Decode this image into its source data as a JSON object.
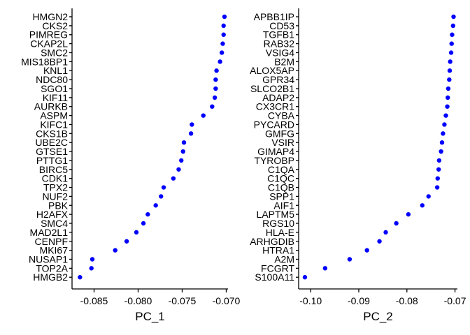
{
  "chart_data": [
    {
      "type": "scatter",
      "xlabel": "PC_1",
      "xlim": [
        -0.0875,
        -0.0698
      ],
      "xticks": [
        -0.085,
        -0.08,
        -0.075,
        -0.07
      ],
      "xtick_labels": [
        "-0.085",
        "-0.080",
        "-0.075",
        "-0.070"
      ],
      "point_color": "#0000ff",
      "grid": false,
      "genes": [
        "HMGN2",
        "CKS2",
        "PIMREG",
        "CKAP2L",
        "SMC2",
        "MIS18BP1",
        "KNL1",
        "NDC80",
        "SGO1",
        "KIF11",
        "AURKB",
        "ASPM",
        "KIFC1",
        "CKS1B",
        "UBE2C",
        "GTSE1",
        "PTTG1",
        "BIRC5",
        "CDK1",
        "TPX2",
        "NUF2",
        "PBK",
        "H2AFX",
        "SMC4",
        "MAD2L1",
        "CENPF",
        "MKI67",
        "NUSAP1",
        "TOP2A",
        "HMGB2"
      ],
      "values": [
        -0.0702,
        -0.0703,
        -0.0703,
        -0.0704,
        -0.0705,
        -0.0707,
        -0.0711,
        -0.0712,
        -0.0712,
        -0.0713,
        -0.0716,
        -0.0726,
        -0.0739,
        -0.074,
        -0.0748,
        -0.0749,
        -0.0751,
        -0.0754,
        -0.076,
        -0.0771,
        -0.0774,
        -0.078,
        -0.0789,
        -0.0794,
        -0.0802,
        -0.0813,
        -0.0826,
        -0.0852,
        -0.0853,
        -0.0866
      ]
    },
    {
      "type": "scatter",
      "xlabel": "PC_2",
      "xlim": [
        -0.1025,
        -0.0695
      ],
      "xticks": [
        -0.1,
        -0.09,
        -0.08,
        -0.07
      ],
      "xtick_labels": [
        "-0.10",
        "-0.09",
        "-0.08",
        "-0.07"
      ],
      "point_color": "#0000ff",
      "grid": false,
      "genes": [
        "APBB1IP",
        "CD53",
        "TGFB1",
        "RAB32",
        "VSIG4",
        "B2M",
        "ALOX5AP",
        "GPR34",
        "SLCO2B1",
        "ADAP2",
        "CX3CR1",
        "CYBA",
        "PYCARD",
        "GMFG",
        "VSIR",
        "GIMAP4",
        "TYROBP",
        "C1QA",
        "C1QC",
        "C1QB",
        "SPP1",
        "AIF1",
        "LAPTM5",
        "RGS10",
        "HLA-E",
        "ARHGDIB",
        "HTRA1",
        "A2M",
        "FCGRT",
        "S100A11"
      ],
      "values": [
        -0.0703,
        -0.0704,
        -0.0706,
        -0.0707,
        -0.0708,
        -0.071,
        -0.0711,
        -0.0712,
        -0.0714,
        -0.0715,
        -0.0716,
        -0.0719,
        -0.0722,
        -0.0725,
        -0.0727,
        -0.0729,
        -0.0733,
        -0.0734,
        -0.0736,
        -0.0737,
        -0.0755,
        -0.0768,
        -0.0797,
        -0.0822,
        -0.0844,
        -0.0857,
        -0.0883,
        -0.0919,
        -0.097,
        -0.1012
      ]
    }
  ]
}
